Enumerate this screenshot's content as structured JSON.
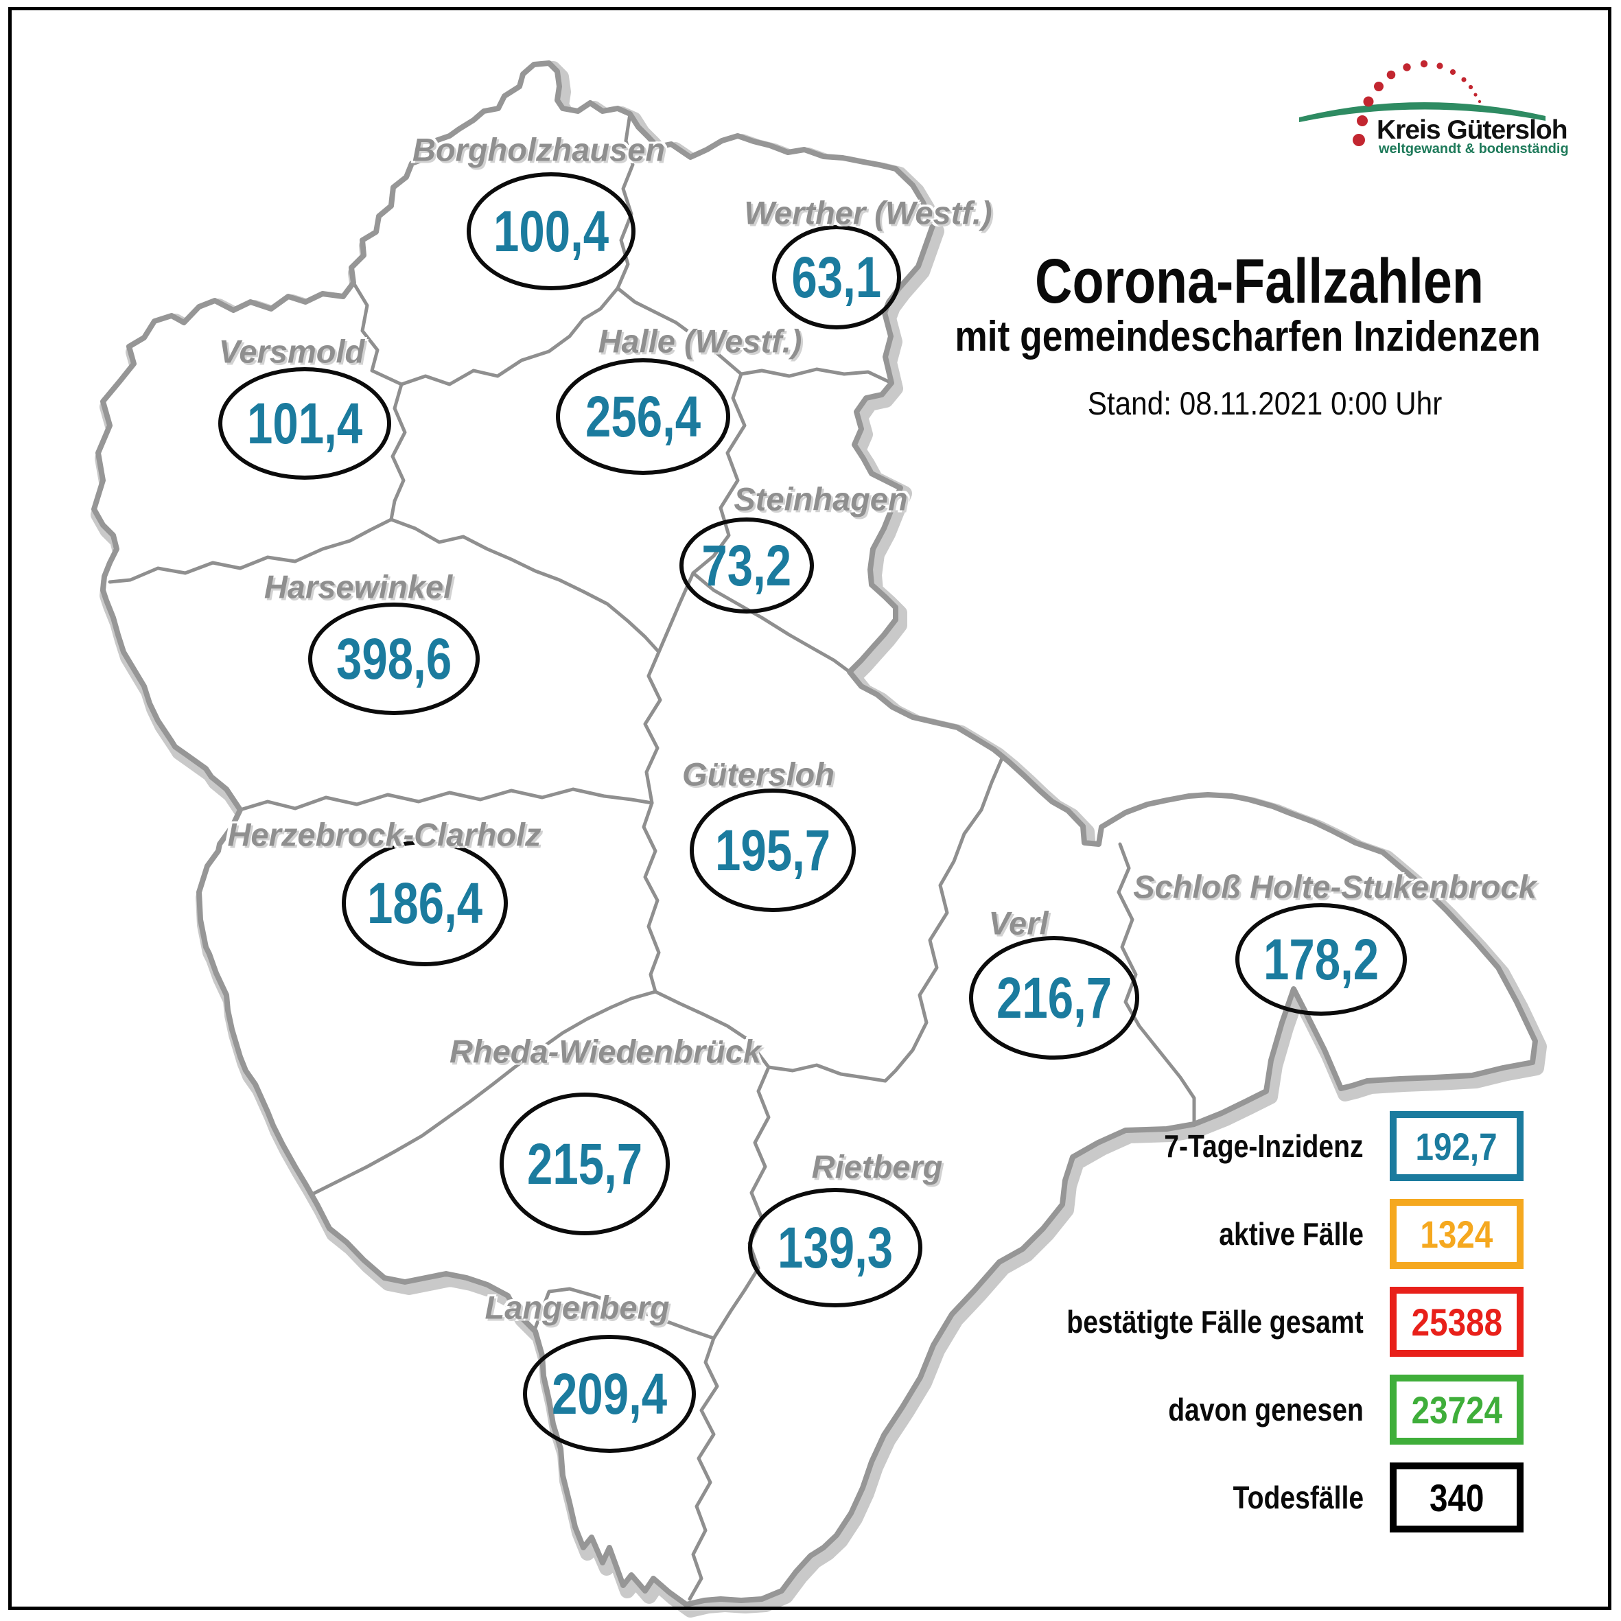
{
  "page": {
    "background": "#ffffff",
    "frame_color": "#000000"
  },
  "logo": {
    "name": "Kreis Gütersloh",
    "tagline": "weltgewandt & bodenständig",
    "dots_color": "#c22630",
    "swoosh_color": "#2e8b62",
    "tagline_color": "#1e7a5a"
  },
  "header": {
    "title": "Corona-Fallzahlen",
    "subtitle": "mit gemeindescharfen Inzidenzen",
    "stand": "Stand: 08.11.2021 0:00 Uhr"
  },
  "map": {
    "incidence_color": "#1b7b9e",
    "label_color": "#8f8f8f",
    "border_color": "#919191",
    "municipalities": [
      {
        "name": "Borgholzhausen",
        "value": "100,4"
      },
      {
        "name": "Werther (Westf.)",
        "value": "63,1"
      },
      {
        "name": "Versmold",
        "value": "101,4"
      },
      {
        "name": "Halle (Westf.)",
        "value": "256,4"
      },
      {
        "name": "Steinhagen",
        "value": "73,2"
      },
      {
        "name": "Harsewinkel",
        "value": "398,6"
      },
      {
        "name": "Gütersloh",
        "value": "195,7"
      },
      {
        "name": "Herzebrock-Clarholz",
        "value": "186,4"
      },
      {
        "name": "Verl",
        "value": "216,7"
      },
      {
        "name": "Schloß Holte-Stukenbrock",
        "value": "178,2"
      },
      {
        "name": "Rheda-Wiedenbrück",
        "value": "215,7"
      },
      {
        "name": "Rietberg",
        "value": "139,3"
      },
      {
        "name": "Langenberg",
        "value": "209,4"
      }
    ]
  },
  "legend": {
    "items": [
      {
        "label": "7-Tage-Inzidenz",
        "value": "192,7",
        "color": "#1b7b9e"
      },
      {
        "label": "aktive Fälle",
        "value": "1324",
        "color": "#f5a81f"
      },
      {
        "label": "bestätigte Fälle gesamt",
        "value": "25388",
        "color": "#e8201a"
      },
      {
        "label": "davon genesen",
        "value": "23724",
        "color": "#3fae3a"
      },
      {
        "label": "Todesfälle",
        "value": "340",
        "color": "#000000"
      }
    ]
  }
}
